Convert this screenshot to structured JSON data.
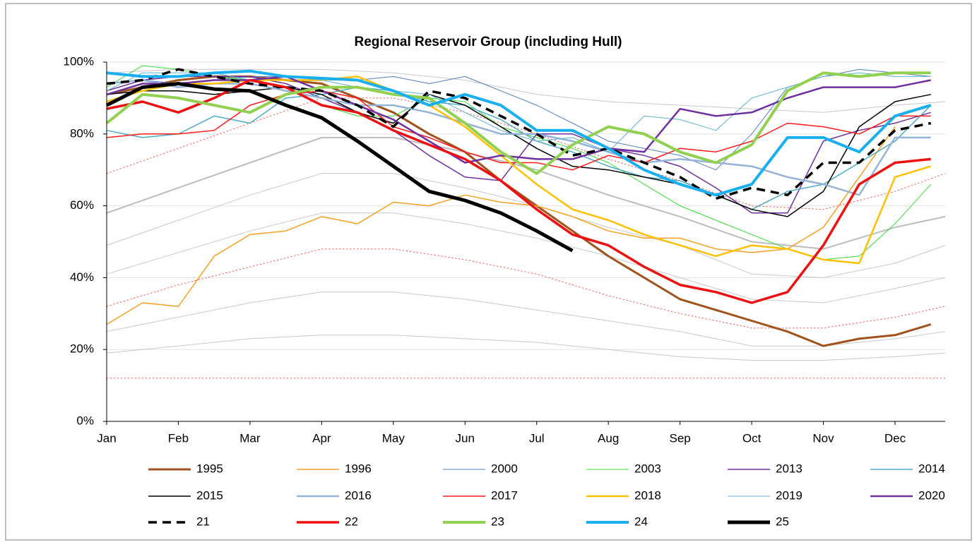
{
  "chart_data": {
    "type": "line",
    "title": "Regional Reservoir Group (including Hull)",
    "x": [
      0,
      0.5,
      1,
      1.5,
      2,
      2.5,
      3,
      3.5,
      4,
      4.5,
      5,
      5.5,
      6,
      6.5,
      7,
      7.5,
      8,
      8.5,
      9,
      9.5,
      10,
      10.5,
      11,
      11.5
    ],
    "xlim": [
      0,
      11.7
    ],
    "xticks": [
      {
        "value": 0,
        "label": "Jan"
      },
      {
        "value": 1,
        "label": "Feb"
      },
      {
        "value": 2,
        "label": "Mar"
      },
      {
        "value": 3,
        "label": "Apr"
      },
      {
        "value": 4,
        "label": "May"
      },
      {
        "value": 5,
        "label": "Jun"
      },
      {
        "value": 6,
        "label": "Jul"
      },
      {
        "value": 7,
        "label": "Aug"
      },
      {
        "value": 8,
        "label": "Sep"
      },
      {
        "value": 9,
        "label": "Oct"
      },
      {
        "value": 10,
        "label": "Nov"
      },
      {
        "value": 11,
        "label": "Dec"
      }
    ],
    "ylim": [
      0,
      100
    ],
    "yticks": [
      {
        "value": 0,
        "label": "0%"
      },
      {
        "value": 20,
        "label": "20%"
      },
      {
        "value": 40,
        "label": "40%"
      },
      {
        "value": 60,
        "label": "60%"
      },
      {
        "value": 80,
        "label": "80%"
      },
      {
        "value": 100,
        "label": "100%"
      }
    ],
    "grid": true,
    "legend": "bottom",
    "reference_lines": {
      "x": [
        0,
        1,
        2,
        3,
        4,
        5,
        6,
        7,
        8,
        9,
        10,
        11,
        11.7
      ],
      "lines": [
        {
          "color": "#c8c8c8",
          "width": 1,
          "dash": false,
          "values": [
            97,
            98,
            98,
            98,
            97,
            95,
            91,
            89,
            88,
            87,
            86,
            88,
            89
          ]
        },
        {
          "color": "#bdbdbd",
          "width": 2,
          "dash": false,
          "values": [
            58,
            65,
            72,
            79,
            79,
            75,
            70,
            63,
            57,
            50,
            48,
            54,
            57
          ]
        },
        {
          "color": "#c8c8c8",
          "width": 1,
          "dash": false,
          "values": [
            49,
            56,
            63,
            69,
            69,
            65,
            60,
            54,
            49,
            41,
            40,
            44,
            49
          ]
        },
        {
          "color": "#c8c8c8",
          "width": 1,
          "dash": false,
          "values": [
            41,
            47,
            53,
            58,
            58,
            55,
            51,
            46,
            40,
            34,
            33,
            37,
            40
          ]
        },
        {
          "color": "#c8c8c8",
          "width": 1,
          "dash": false,
          "values": [
            25,
            29,
            33,
            36,
            36,
            34,
            31,
            28,
            25,
            21,
            21,
            23,
            25
          ]
        },
        {
          "color": "#c8c8c8",
          "width": 1,
          "dash": false,
          "values": [
            19,
            21,
            23,
            24,
            24,
            23,
            22,
            20,
            18,
            17,
            17,
            18,
            19
          ]
        },
        {
          "color": "#ff4040",
          "width": 1,
          "dash": true,
          "values": [
            69,
            76,
            83,
            90,
            90,
            86,
            80,
            73,
            67,
            60,
            59,
            64,
            69
          ]
        },
        {
          "color": "#ff4040",
          "width": 1,
          "dash": true,
          "values": [
            32,
            38,
            43,
            48,
            48,
            45,
            41,
            35,
            30,
            26,
            26,
            29,
            32
          ]
        },
        {
          "color": "#ff4040",
          "width": 1,
          "dash": true,
          "values": [
            12,
            12,
            12,
            12,
            12,
            12,
            12,
            12,
            12,
            12,
            12,
            12,
            12
          ]
        }
      ]
    },
    "series": [
      {
        "name": "1995",
        "color": "#a0521a",
        "width": 3,
        "dash": false,
        "values": [
          91,
          93,
          95,
          96,
          96,
          95,
          94,
          90,
          86,
          80,
          75,
          67,
          60,
          53,
          46,
          40,
          34,
          31,
          28,
          25,
          21,
          23,
          24,
          27
        ]
      },
      {
        "name": "1996",
        "color": "#f7a021",
        "width": 1.5,
        "dash": false,
        "values": [
          27,
          33,
          32,
          46,
          52,
          53,
          57,
          55,
          61,
          60,
          63,
          61,
          60,
          57,
          53,
          51,
          51,
          48,
          47,
          48,
          54,
          68,
          82,
          null
        ]
      },
      {
        "name": "2000",
        "color": "#4f81bd",
        "width": 1,
        "dash": false,
        "values": [
          94,
          95,
          94,
          95,
          96,
          96,
          95,
          95,
          96,
          94,
          96,
          92,
          88,
          83,
          78,
          76,
          74,
          70,
          80,
          93,
          96,
          98,
          97,
          96
        ]
      },
      {
        "name": "2003",
        "color": "#33dd33",
        "width": 1,
        "dash": false,
        "values": [
          93,
          99,
          98,
          96,
          95,
          93,
          88,
          85,
          85,
          90,
          89,
          82,
          79,
          76,
          72,
          66,
          60,
          56,
          52,
          48,
          45,
          46,
          55,
          66
        ]
      },
      {
        "name": "2013",
        "color": "#7030a0",
        "width": 1.5,
        "dash": false,
        "values": [
          92,
          95,
          96,
          96,
          96,
          94,
          90,
          86,
          81,
          74,
          68,
          67,
          80,
          80,
          76,
          74,
          71,
          65,
          58,
          58,
          78,
          81,
          83,
          86
        ]
      },
      {
        "name": "2014",
        "color": "#4bacc6",
        "width": 1.5,
        "dash": false,
        "values": [
          81,
          79,
          80,
          85,
          83,
          90,
          91,
          93,
          92,
          89,
          88,
          84,
          78,
          75,
          71,
          68,
          67,
          63,
          59,
          64,
          66,
          72,
          78,
          88
        ]
      },
      {
        "name": "2015",
        "color": "#000000",
        "width": 1.5,
        "dash": false,
        "values": [
          91,
          92,
          92,
          91,
          92,
          93,
          91,
          86,
          83,
          91,
          88,
          82,
          76,
          71,
          70,
          68,
          66,
          63,
          59,
          57,
          64,
          82,
          89,
          91
        ]
      },
      {
        "name": "2016",
        "color": "#95b3d7",
        "width": 2.5,
        "dash": false,
        "values": [
          94,
          95,
          93,
          94,
          94,
          92,
          90,
          88,
          88,
          86,
          83,
          80,
          80,
          78,
          75,
          72,
          73,
          72,
          71,
          68,
          66,
          63,
          79,
          79
        ]
      },
      {
        "name": "2017",
        "color": "#ff1a1a",
        "width": 1.5,
        "dash": false,
        "values": [
          79,
          80,
          80,
          81,
          88,
          91,
          92,
          90,
          82,
          79,
          75,
          72,
          72,
          70,
          74,
          72,
          76,
          75,
          78,
          83,
          82,
          80,
          85,
          85
        ]
      },
      {
        "name": "2018",
        "color": "#ffc000",
        "width": 2.5,
        "dash": false,
        "values": [
          89,
          92,
          94,
          94,
          95,
          95,
          95,
          96,
          92,
          88,
          82,
          74,
          66,
          59,
          56,
          52,
          49,
          46,
          49,
          48,
          45,
          44,
          68,
          71
        ]
      },
      {
        "name": "2019",
        "color": "#5bb3d0",
        "width": 1,
        "dash": false,
        "values": [
          92,
          97,
          97,
          97,
          95,
          96,
          95,
          93,
          92,
          91,
          86,
          81,
          78,
          79,
          75,
          85,
          84,
          81,
          90,
          93,
          96,
          97,
          96,
          96
        ]
      },
      {
        "name": "2020",
        "color": "#7030a0",
        "width": 2.5,
        "dash": false,
        "values": [
          91,
          94,
          94,
          95,
          95,
          96,
          92,
          88,
          84,
          78,
          72,
          74,
          73,
          73,
          76,
          75,
          87,
          85,
          86,
          90,
          93,
          93,
          93,
          95
        ]
      },
      {
        "name": "21",
        "color": "#000000",
        "width": 3.5,
        "dash": true,
        "values": [
          94,
          95,
          98,
          96,
          94,
          93,
          92,
          88,
          82,
          92,
          90,
          85,
          80,
          74,
          76,
          72,
          68,
          62,
          65,
          63,
          72,
          72,
          81,
          83
        ]
      },
      {
        "name": "22",
        "color": "#ee1111",
        "width": 3.5,
        "dash": false,
        "values": [
          87,
          89,
          86,
          90,
          95,
          93,
          88,
          86,
          81,
          77,
          73,
          67,
          59,
          52,
          49,
          43,
          38,
          36,
          33,
          36,
          49,
          66,
          72,
          73
        ]
      },
      {
        "name": "23",
        "color": "#92d050",
        "width": 4,
        "dash": false,
        "values": [
          83,
          91,
          90,
          88,
          86,
          91,
          93,
          93,
          91,
          90,
          83,
          75,
          69,
          77,
          82,
          80,
          75,
          72,
          77,
          92,
          97,
          96,
          97,
          97
        ]
      },
      {
        "name": "24",
        "color": "#1ab0f0",
        "width": 4,
        "dash": false,
        "values": [
          97,
          96,
          96,
          97,
          97.5,
          96,
          95.5,
          95,
          92,
          88,
          91,
          88,
          81,
          81,
          76,
          70,
          66,
          63,
          66,
          79,
          79,
          75,
          85,
          88
        ]
      },
      {
        "name": "25",
        "color": "#000000",
        "width": 5,
        "dash": false,
        "values": [
          88,
          93,
          94,
          92.5,
          92,
          88,
          84.5,
          78,
          71,
          64,
          61.5,
          58,
          53,
          47.5,
          null,
          null,
          null,
          null,
          null,
          null,
          null,
          null,
          null,
          null
        ]
      }
    ]
  }
}
